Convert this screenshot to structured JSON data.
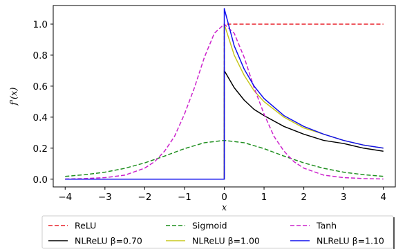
{
  "chart_data": {
    "type": "line",
    "title": "",
    "xlabel": "x",
    "ylabel": "f'(x)",
    "xlim": [
      -4.3,
      4.3
    ],
    "ylim": [
      -0.05,
      1.12
    ],
    "xticks": [
      -4,
      -3,
      -2,
      -1,
      0,
      1,
      2,
      3,
      4
    ],
    "xtick_labels": [
      "−4",
      "−3",
      "−2",
      "−1",
      "0",
      "1",
      "2",
      "3",
      "4"
    ],
    "yticks": [
      0.0,
      0.2,
      0.4,
      0.6,
      0.8,
      1.0
    ],
    "ytick_labels": [
      "0.0",
      "0.2",
      "0.4",
      "0.6",
      "0.8",
      "1.0"
    ],
    "grid": false,
    "legend_position": "bottom",
    "series": [
      {
        "name": "ReLU",
        "color": "#e8202a",
        "dash": "dashed",
        "x": [
          -4,
          0,
          0,
          4
        ],
        "y": [
          0,
          0,
          1,
          1
        ]
      },
      {
        "name": "NLReLU β=0.70",
        "color": "#000000",
        "dash": "solid",
        "x": [
          -4,
          0,
          0,
          0.25,
          0.5,
          0.75,
          1,
          1.5,
          2,
          2.5,
          3,
          3.5,
          4
        ],
        "y": [
          0,
          0,
          0.7,
          0.59,
          0.51,
          0.45,
          0.41,
          0.34,
          0.29,
          0.25,
          0.23,
          0.2,
          0.18
        ]
      },
      {
        "name": "Sigmoid",
        "color": "#1f8f1f",
        "dash": "dashed",
        "x": [
          -4,
          -3.5,
          -3,
          -2.5,
          -2,
          -1.5,
          -1,
          -0.5,
          0,
          0.5,
          1,
          1.5,
          2,
          2.5,
          3,
          3.5,
          4
        ],
        "y": [
          0.018,
          0.029,
          0.045,
          0.07,
          0.105,
          0.149,
          0.197,
          0.235,
          0.25,
          0.235,
          0.197,
          0.149,
          0.105,
          0.07,
          0.045,
          0.029,
          0.018
        ]
      },
      {
        "name": "NLReLU β=1.00",
        "color": "#c8c81e",
        "dash": "solid",
        "x": [
          -4,
          0,
          0,
          0.25,
          0.5,
          0.75,
          1,
          1.5,
          2,
          2.5,
          3,
          3.5,
          4
        ],
        "y": [
          0,
          0,
          1.0,
          0.8,
          0.67,
          0.57,
          0.5,
          0.4,
          0.33,
          0.29,
          0.25,
          0.22,
          0.2
        ]
      },
      {
        "name": "Tanh",
        "color": "#cc22cc",
        "dash": "dashed",
        "x": [
          -4,
          -3.5,
          -3,
          -2.5,
          -2,
          -1.75,
          -1.5,
          -1.25,
          -1,
          -0.75,
          -0.5,
          -0.25,
          0,
          0.25,
          0.5,
          0.75,
          1,
          1.25,
          1.5,
          1.75,
          2,
          2.5,
          3,
          3.5,
          4
        ],
        "y": [
          0.001,
          0.004,
          0.01,
          0.026,
          0.071,
          0.113,
          0.181,
          0.276,
          0.42,
          0.59,
          0.786,
          0.941,
          1.0,
          0.941,
          0.786,
          0.59,
          0.42,
          0.276,
          0.181,
          0.113,
          0.071,
          0.026,
          0.01,
          0.004,
          0.001
        ]
      },
      {
        "name": "NLReLU β=1.10",
        "color": "#1010ee",
        "dash": "solid",
        "x": [
          -4,
          0,
          0,
          0.25,
          0.5,
          0.75,
          1,
          1.5,
          2,
          2.5,
          3,
          3.5,
          4
        ],
        "y": [
          0,
          0,
          1.1,
          0.86,
          0.71,
          0.6,
          0.52,
          0.41,
          0.34,
          0.29,
          0.25,
          0.22,
          0.2
        ]
      }
    ]
  }
}
